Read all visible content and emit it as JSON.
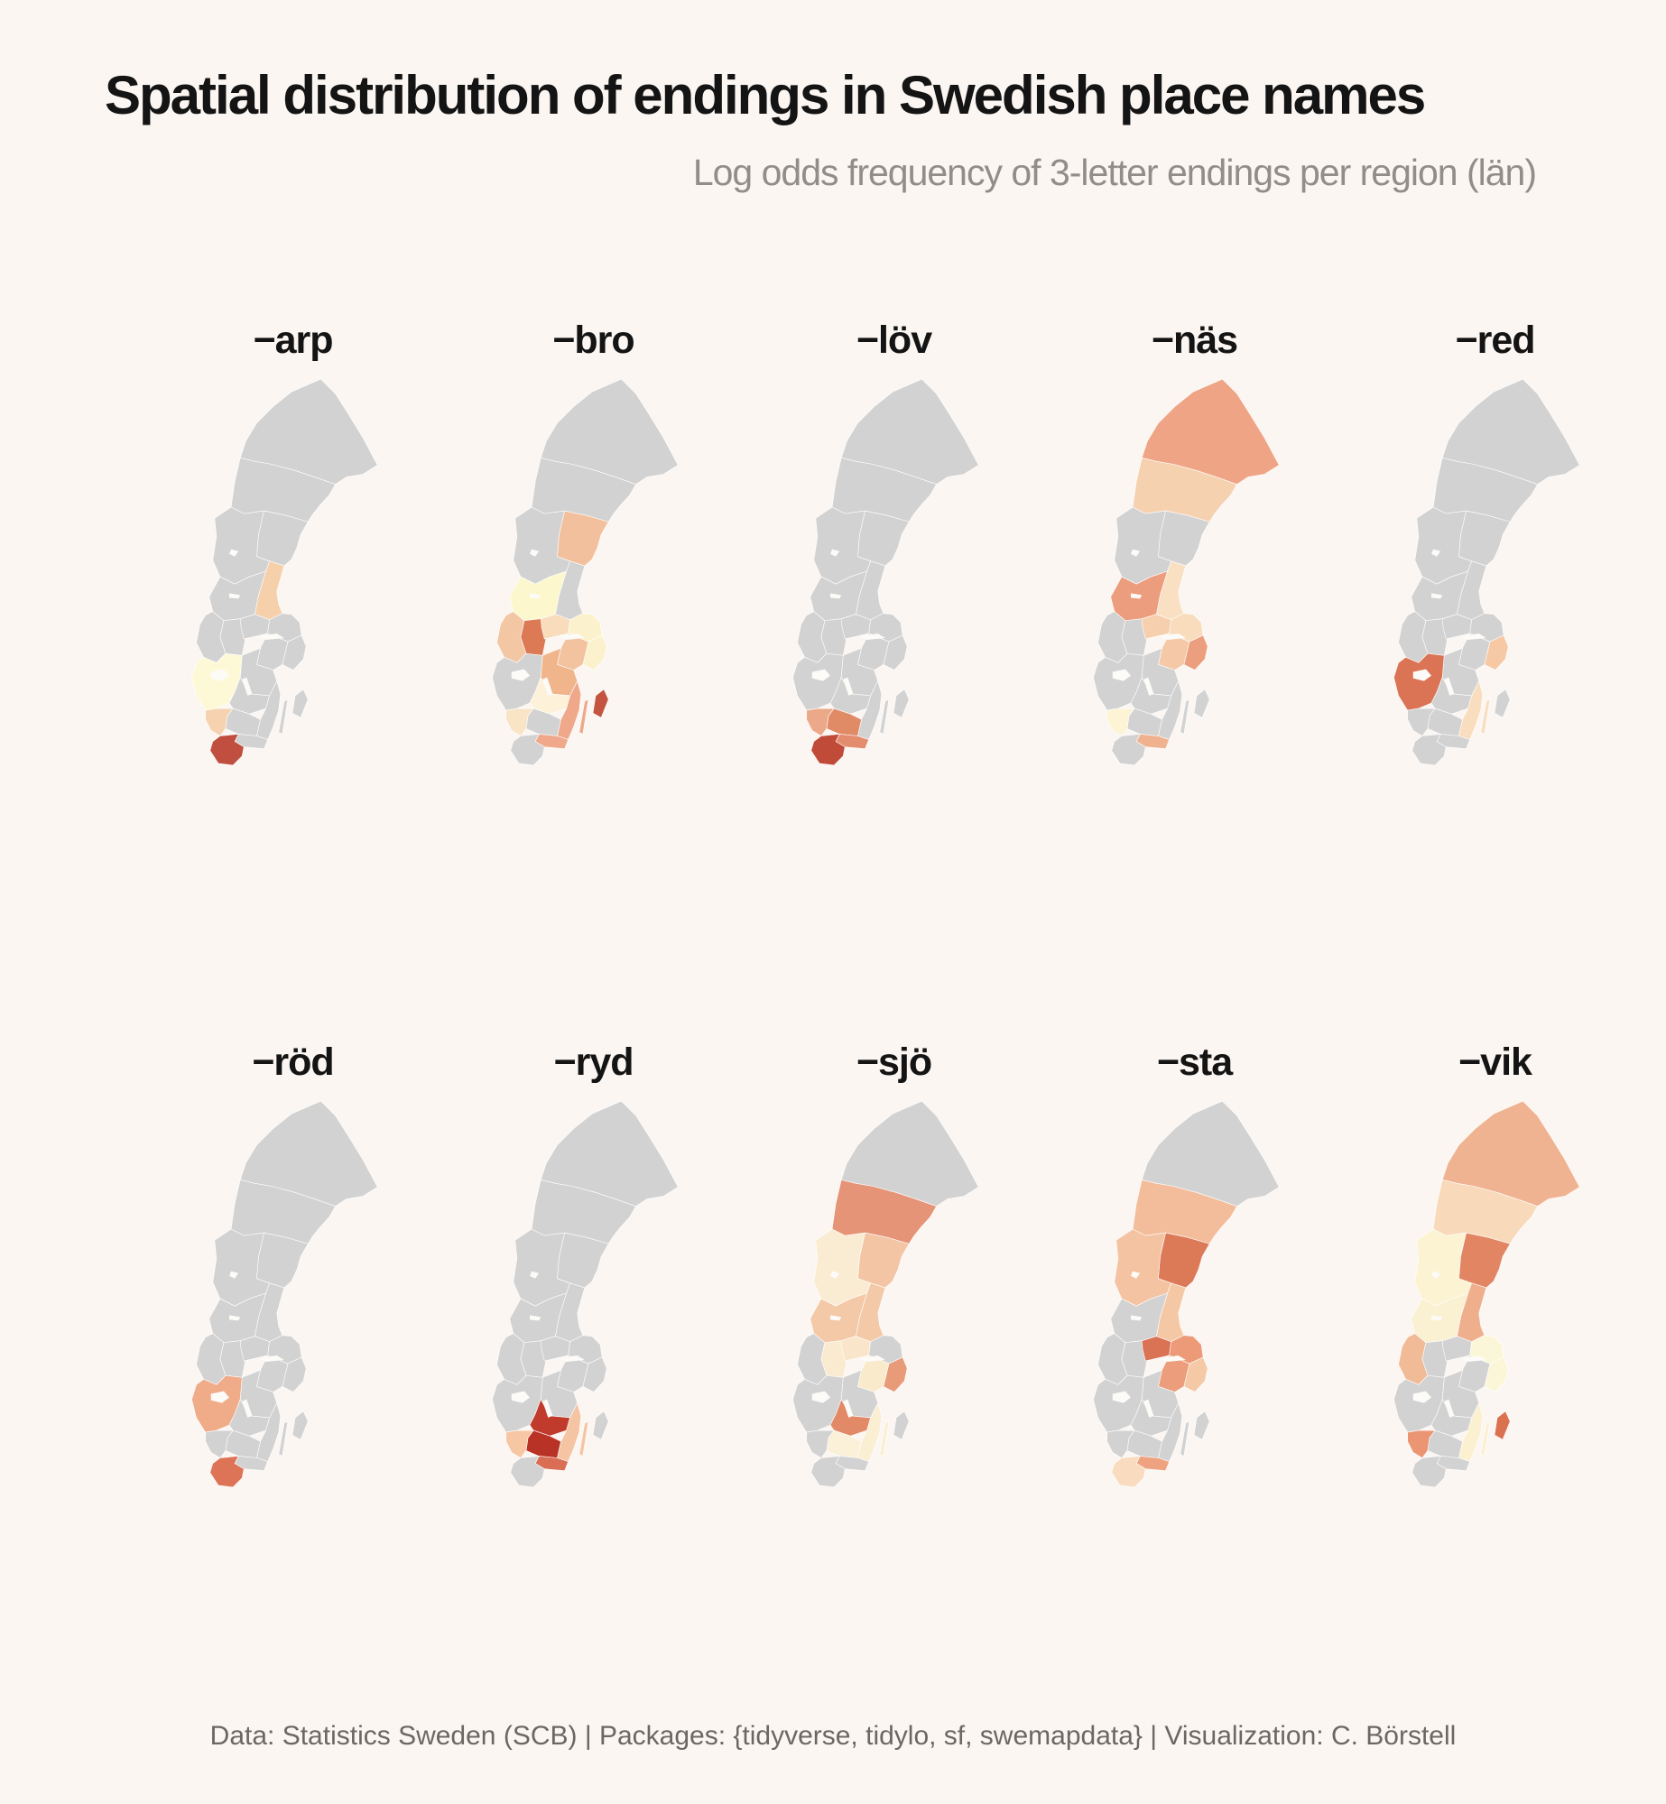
{
  "page": {
    "background": "#fbf6f2"
  },
  "header": {
    "title": "Spatial distribution of endings in Swedish place names",
    "subtitle": "Log odds frequency of 3-letter endings per region (län)"
  },
  "caption": "Data: Statistics Sweden (SCB) | Packages: {tidyverse, tidylo, sf, swemapdata} | Visualization: C. Börstell",
  "chart_data": {
    "type": "heatmap",
    "subtype": "choropleth-small-multiples",
    "map_unit": "Swedish counties (län)",
    "legend": "none (color encodes log odds: pale yellow = low, dark red = high)",
    "na_color": "#d2d2d2",
    "border_color": "#ffffff",
    "region_names": {
      "norrbotten": "Norrbotten",
      "vasterbotten": "Västerbotten",
      "jamtland": "Jämtland",
      "vasternorrland": "Västernorrland",
      "gavleborg": "Gävleborg",
      "dalarna": "Dalarna",
      "varmland": "Värmland",
      "orebro": "Örebro",
      "vastmanland": "Västmanland",
      "uppsala": "Uppsala",
      "stockholm": "Stockholm",
      "sodermanland": "Södermanland",
      "ostergotland": "Östergötland",
      "vastra-gotaland": "Västra Götaland",
      "jonkoping": "Jönköping",
      "kalmar": "Kalmar",
      "kronoberg": "Kronoberg",
      "halland": "Halland",
      "blekinge": "Blekinge",
      "skane": "Skåne",
      "gotland": "Gotland"
    },
    "facets": [
      {
        "label": "−arp",
        "values": {
          "gavleborg": "#f6cfab",
          "vastra-gotaland": "#fdf9d7",
          "halland": "#f7d2b0",
          "skane": "#c04f3f"
        }
      },
      {
        "label": "−bro",
        "values": {
          "vasternorrland": "#f2c09c",
          "dalarna": "#fcf7cd",
          "varmland": "#f3c7a4",
          "orebro": "#dd7a56",
          "vastmanland": "#f8dcbc",
          "uppsala": "#fbf2cd",
          "stockholm": "#fbf2cd",
          "sodermanland": "#f3c29e",
          "ostergotland": "#f0b58b",
          "kalmar": "#efa88a",
          "jonkoping": "#fdf2d9",
          "halland": "#f9e4c6",
          "blekinge": "#efa88a",
          "gotland": "#c4533f"
        }
      },
      {
        "label": "−löv",
        "values": {
          "skane": "#c14b39",
          "kronoberg": "#e18a66",
          "blekinge": "#e38d6e",
          "halland": "#eca98a"
        }
      },
      {
        "label": "−näs",
        "values": {
          "norrbotten": "#efa585",
          "vasterbotten": "#f6d1b0",
          "dalarna": "#ec9d7d",
          "gavleborg": "#f9e0c2",
          "vastmanland": "#f6d0ae",
          "uppsala": "#f8dcbc",
          "stockholm": "#ec9f7e",
          "sodermanland": "#f5c9a7",
          "halland": "#fdf4d6",
          "blekinge": "#f0b28e"
        }
      },
      {
        "label": "−red",
        "values": {
          "vastra-gotaland": "#db7355",
          "stockholm": "#f6c8a4",
          "kalmar": "#f9ddbf"
        }
      },
      {
        "label": "−röd",
        "values": {
          "vastra-gotaland": "#f0ab88",
          "skane": "#dd7458"
        }
      },
      {
        "label": "−ryd",
        "values": {
          "jonkoping": "#c13b2c",
          "kronoberg": "#b93226",
          "halland": "#f7c7a4",
          "kalmar": "#f5c4a2",
          "blekinge": "#da6e54"
        }
      },
      {
        "label": "−sjö",
        "values": {
          "vasterbotten": "#e69478",
          "vasternorrland": "#f3c5a5",
          "jamtland": "#faecd2",
          "gavleborg": "#f4c9a8",
          "dalarna": "#f4c9a8",
          "orebro": "#f9ead0",
          "vastmanland": "#f9e6ca",
          "sodermanland": "#faeacc",
          "stockholm": "#e89b79",
          "jonkoping": "#e28a68",
          "kalmar": "#faeed3",
          "kronoberg": "#fbf0d8"
        }
      },
      {
        "label": "−sta",
        "values": {
          "vasterbotten": "#f3bd9c",
          "vasternorrland": "#dc7a58",
          "jamtland": "#f4c3a1",
          "gavleborg": "#f5c8a5",
          "vastmanland": "#da7254",
          "uppsala": "#ec9a78",
          "stockholm": "#f5c9a6",
          "sodermanland": "#eb9d7c",
          "blekinge": "#efa27f",
          "skane": "#f9dcc0"
        }
      },
      {
        "label": "−vik",
        "values": {
          "norrbotten": "#f0b391",
          "vasterbotten": "#f8d9ba",
          "vasternorrland": "#e28562",
          "jamtland": "#fbf3d2",
          "gavleborg": "#efaf8d",
          "dalarna": "#faf0d2",
          "varmland": "#f2bb97",
          "uppsala": "#fcf6d8",
          "stockholm": "#fcf6d8",
          "kalmar": "#fbf0d0",
          "gotland": "#dc7150",
          "halland": "#eb9573"
        }
      }
    ]
  }
}
